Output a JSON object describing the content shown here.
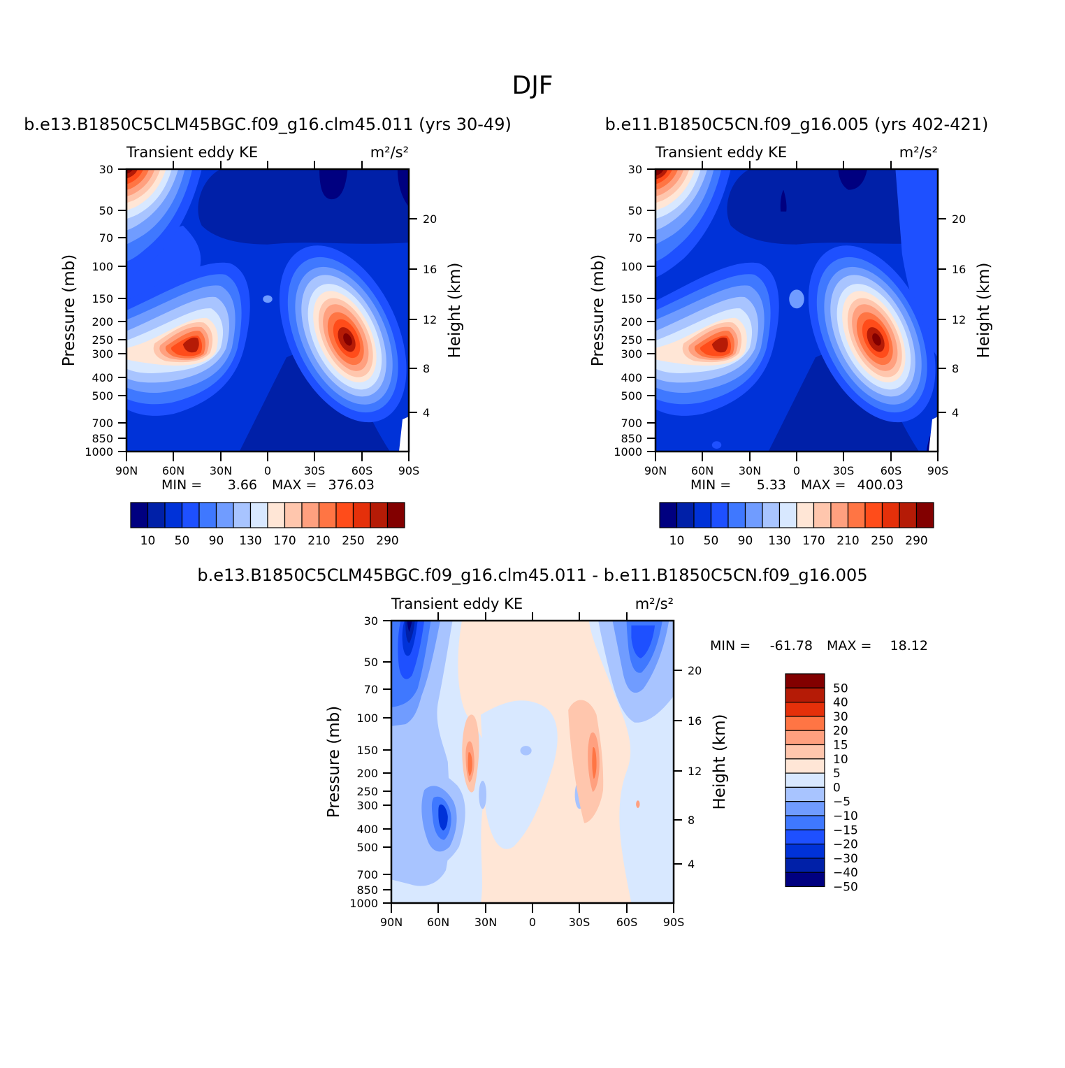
{
  "main_title": "DJF",
  "colors": {
    "abs_levels": [
      "#000080",
      "#0020a8",
      "#0032d8",
      "#1e50ff",
      "#3f78ff",
      "#709cff",
      "#a8c4ff",
      "#d8e8ff",
      "#ffe6d6",
      "#ffc6ad",
      "#ffa07f",
      "#ff7544",
      "#ff4c1a",
      "#e5300a",
      "#b51b06",
      "#820000"
    ],
    "diff_levels": [
      "#000080",
      "#0020a8",
      "#0032d8",
      "#1e50ff",
      "#3f78ff",
      "#709cff",
      "#a8c4ff",
      "#d8e8ff",
      "#ffe6d6",
      "#ffc6ad",
      "#ffa07f",
      "#ff7544",
      "#e5300a",
      "#b51b06",
      "#820000"
    ]
  },
  "chart_data": [
    {
      "type": "heatmap",
      "title": "b.e13.B1850C5CLM45BGC.f09_g16.clm45.011 (yrs 30-49)",
      "left_label": "Transient eddy KE",
      "right_label": "m²/s²",
      "ylabel": "Pressure (mb)",
      "y2label": "Height (km)",
      "x_ticks": [
        "90N",
        "60N",
        "30N",
        "0",
        "30S",
        "60S",
        "90S"
      ],
      "y_ticks": [
        "30",
        "50",
        "70",
        "100",
        "150",
        "200",
        "250",
        "300",
        "400",
        "500",
        "700",
        "850",
        "1000"
      ],
      "y2_ticks": [
        "20",
        "16",
        "12",
        "8",
        "4"
      ],
      "min_label": "MIN =",
      "min_value": "3.66",
      "max_label": "MAX =",
      "max_value": "376.03",
      "colorbar_labels": [
        "10",
        "50",
        "90",
        "130",
        "170",
        "210",
        "250",
        "290"
      ],
      "contour_levels": [
        10,
        30,
        50,
        70,
        90,
        110,
        130,
        150,
        170,
        190,
        210,
        230,
        250,
        270,
        290
      ]
    },
    {
      "type": "heatmap",
      "title": "b.e11.B1850C5CN.f09_g16.005 (yrs 402-421)",
      "left_label": "Transient eddy KE",
      "right_label": "m²/s²",
      "ylabel": "Pressure (mb)",
      "y2label": "Height (km)",
      "x_ticks": [
        "90N",
        "60N",
        "30N",
        "0",
        "30S",
        "60S",
        "90S"
      ],
      "y_ticks": [
        "30",
        "50",
        "70",
        "100",
        "150",
        "200",
        "250",
        "300",
        "400",
        "500",
        "700",
        "850",
        "1000"
      ],
      "y2_ticks": [
        "20",
        "16",
        "12",
        "8",
        "4"
      ],
      "min_label": "MIN =",
      "min_value": "5.33",
      "max_label": "MAX =",
      "max_value": "400.03",
      "colorbar_labels": [
        "10",
        "50",
        "90",
        "130",
        "170",
        "210",
        "250",
        "290"
      ],
      "contour_levels": [
        10,
        30,
        50,
        70,
        90,
        110,
        130,
        150,
        170,
        190,
        210,
        230,
        250,
        270,
        290
      ]
    },
    {
      "type": "heatmap",
      "title": "b.e13.B1850C5CLM45BGC.f09_g16.clm45.011 - b.e11.B1850C5CN.f09_g16.005",
      "left_label": "Transient eddy KE",
      "right_label": "m²/s²",
      "ylabel": "Pressure (mb)",
      "y2label": "Height (km)",
      "x_ticks": [
        "90N",
        "60N",
        "30N",
        "0",
        "30S",
        "60S",
        "90S"
      ],
      "y_ticks": [
        "30",
        "50",
        "70",
        "100",
        "150",
        "200",
        "250",
        "300",
        "400",
        "500",
        "700",
        "850",
        "1000"
      ],
      "y2_ticks": [
        "20",
        "16",
        "12",
        "8",
        "4"
      ],
      "min_label": "MIN =",
      "min_value": "-61.78",
      "max_label": "MAX =",
      "max_value": "18.12",
      "colorbar_labels": [
        "50",
        "40",
        "30",
        "20",
        "15",
        "10",
        "5",
        "0",
        "-5",
        "-10",
        "-15",
        "-20",
        "-30",
        "-40",
        "-50"
      ],
      "contour_levels": [
        -50,
        -40,
        -30,
        -20,
        -15,
        -10,
        -5,
        0,
        5,
        10,
        15,
        20,
        30,
        40,
        50
      ]
    }
  ]
}
